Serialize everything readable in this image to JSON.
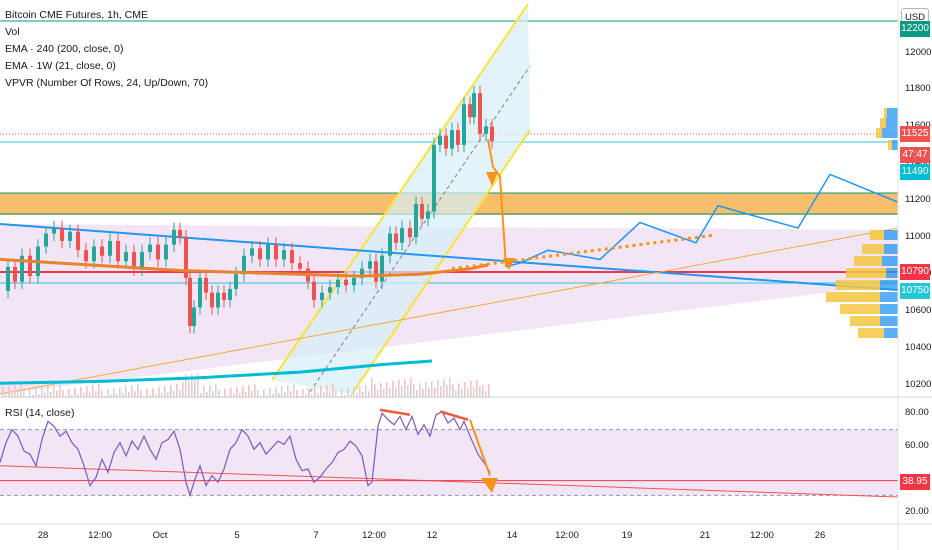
{
  "chart_data": {
    "type": "line",
    "title": "Bitcoin CME Futures, 1h, CME",
    "indicators": [
      "Vol",
      "EMA · 240 (200, close, 0)",
      "EMA · 1W (21, close, 0)",
      "VPVR (Number Of Rows, 24, Up/Down, 70)"
    ],
    "rsi_label": "RSI (14, close)",
    "currency": "USD",
    "price_axis": {
      "range": [
        10130,
        12230
      ],
      "ticks": [
        "12000",
        "11800",
        "11600",
        "11400",
        "11200",
        "11000",
        "10800",
        "10600",
        "10400",
        "10200"
      ]
    },
    "rsi_axis": {
      "range": [
        15,
        88
      ],
      "ticks": [
        "80.00",
        "60.00",
        "40.00",
        "20.00"
      ]
    },
    "x_ticks": [
      "28",
      "12:00",
      "Oct",
      "5",
      "7",
      "12:00",
      "12",
      "14",
      "12:00",
      "19",
      "21",
      "12:00",
      "26"
    ],
    "price_tags": {
      "top": "12200",
      "last": "11525",
      "countdown": "47:47",
      "level_1": "11490",
      "level_2": "10790",
      "level_3": "10750",
      "rsi_last": "38.95"
    },
    "price_series": [
      [
        0,
        10710
      ],
      [
        8,
        10840
      ],
      [
        15,
        10760
      ],
      [
        22,
        10900
      ],
      [
        30,
        10790
      ],
      [
        38,
        10950
      ],
      [
        46,
        11020
      ],
      [
        54,
        11050
      ],
      [
        62,
        10980
      ],
      [
        70,
        11030
      ],
      [
        78,
        10930
      ],
      [
        86,
        10870
      ],
      [
        94,
        10950
      ],
      [
        102,
        10900
      ],
      [
        110,
        10980
      ],
      [
        118,
        10870
      ],
      [
        126,
        10920
      ],
      [
        134,
        10830
      ],
      [
        142,
        10920
      ],
      [
        150,
        10960
      ],
      [
        158,
        10880
      ],
      [
        166,
        10960
      ],
      [
        174,
        11040
      ],
      [
        180,
        11000
      ],
      [
        186,
        10780
      ],
      [
        190,
        10520
      ],
      [
        194,
        10620
      ],
      [
        200,
        10780
      ],
      [
        206,
        10700
      ],
      [
        212,
        10620
      ],
      [
        218,
        10700
      ],
      [
        224,
        10660
      ],
      [
        230,
        10720
      ],
      [
        236,
        10800
      ],
      [
        244,
        10900
      ],
      [
        252,
        10940
      ],
      [
        260,
        10880
      ],
      [
        268,
        10960
      ],
      [
        276,
        10880
      ],
      [
        284,
        10930
      ],
      [
        292,
        10860
      ],
      [
        300,
        10830
      ],
      [
        308,
        10760
      ],
      [
        314,
        10660
      ],
      [
        322,
        10700
      ],
      [
        330,
        10730
      ],
      [
        338,
        10770
      ],
      [
        346,
        10740
      ],
      [
        354,
        10780
      ],
      [
        362,
        10830
      ],
      [
        370,
        10870
      ],
      [
        376,
        10760
      ],
      [
        382,
        10900
      ],
      [
        390,
        11020
      ],
      [
        396,
        10970
      ],
      [
        402,
        11050
      ],
      [
        410,
        11000
      ],
      [
        416,
        11180
      ],
      [
        422,
        11100
      ],
      [
        428,
        11140
      ],
      [
        434,
        11500
      ],
      [
        440,
        11550
      ],
      [
        446,
        11480
      ],
      [
        452,
        11580
      ],
      [
        458,
        11500
      ],
      [
        464,
        11720
      ],
      [
        470,
        11650
      ],
      [
        474,
        11780
      ],
      [
        480,
        11560
      ],
      [
        486,
        11600
      ],
      [
        492,
        11520
      ]
    ],
    "ema_200": [
      [
        0,
        10880
      ],
      [
        60,
        10860
      ],
      [
        120,
        10840
      ],
      [
        180,
        10820
      ],
      [
        240,
        10810
      ],
      [
        300,
        10800
      ],
      [
        360,
        10790
      ],
      [
        420,
        10800
      ],
      [
        470,
        10830
      ],
      [
        488,
        10850
      ]
    ],
    "ema_1w": [
      [
        0,
        10210
      ],
      [
        100,
        10220
      ],
      [
        200,
        10240
      ],
      [
        300,
        10270
      ],
      [
        380,
        10310
      ],
      [
        432,
        10330
      ]
    ],
    "projection_path": [
      [
        488,
        11530
      ],
      [
        493,
        11380
      ],
      [
        500,
        11330
      ],
      [
        506,
        10840
      ],
      [
        520,
        10860
      ],
      [
        548,
        10930
      ],
      [
        600,
        10880
      ],
      [
        640,
        11080
      ],
      [
        696,
        10970
      ],
      [
        718,
        11170
      ],
      [
        798,
        11050
      ],
      [
        830,
        11340
      ],
      [
        898,
        11190
      ]
    ],
    "rsi_series": [
      [
        0,
        50
      ],
      [
        6,
        62
      ],
      [
        12,
        70
      ],
      [
        18,
        66
      ],
      [
        24,
        57
      ],
      [
        30,
        55
      ],
      [
        36,
        48
      ],
      [
        42,
        64
      ],
      [
        48,
        75
      ],
      [
        54,
        72
      ],
      [
        60,
        66
      ],
      [
        66,
        69
      ],
      [
        72,
        62
      ],
      [
        78,
        58
      ],
      [
        84,
        48
      ],
      [
        90,
        36
      ],
      [
        96,
        41
      ],
      [
        102,
        52
      ],
      [
        108,
        44
      ],
      [
        114,
        56
      ],
      [
        120,
        62
      ],
      [
        126,
        54
      ],
      [
        132,
        63
      ],
      [
        138,
        58
      ],
      [
        144,
        66
      ],
      [
        150,
        58
      ],
      [
        156,
        52
      ],
      [
        162,
        62
      ],
      [
        168,
        64
      ],
      [
        174,
        69
      ],
      [
        180,
        58
      ],
      [
        186,
        38
      ],
      [
        190,
        30
      ],
      [
        194,
        38
      ],
      [
        200,
        48
      ],
      [
        206,
        36
      ],
      [
        212,
        42
      ],
      [
        218,
        38
      ],
      [
        224,
        46
      ],
      [
        230,
        58
      ],
      [
        236,
        62
      ],
      [
        242,
        70
      ],
      [
        248,
        66
      ],
      [
        254,
        58
      ],
      [
        260,
        62
      ],
      [
        266,
        55
      ],
      [
        272,
        59
      ],
      [
        278,
        63
      ],
      [
        284,
        61
      ],
      [
        290,
        66
      ],
      [
        296,
        52
      ],
      [
        302,
        45
      ],
      [
        308,
        46
      ],
      [
        314,
        38
      ],
      [
        320,
        41
      ],
      [
        326,
        46
      ],
      [
        332,
        50
      ],
      [
        338,
        56
      ],
      [
        344,
        58
      ],
      [
        350,
        63
      ],
      [
        356,
        60
      ],
      [
        362,
        54
      ],
      [
        368,
        36
      ],
      [
        372,
        38
      ],
      [
        378,
        72
      ],
      [
        382,
        80
      ],
      [
        388,
        76
      ],
      [
        394,
        73
      ],
      [
        400,
        78
      ],
      [
        406,
        70
      ],
      [
        412,
        78
      ],
      [
        418,
        67
      ],
      [
        424,
        73
      ],
      [
        430,
        66
      ],
      [
        436,
        79
      ],
      [
        442,
        81
      ],
      [
        448,
        74
      ],
      [
        454,
        77
      ],
      [
        460,
        70
      ],
      [
        464,
        75
      ],
      [
        470,
        66
      ],
      [
        478,
        55
      ],
      [
        484,
        50
      ],
      [
        490,
        44
      ]
    ]
  }
}
